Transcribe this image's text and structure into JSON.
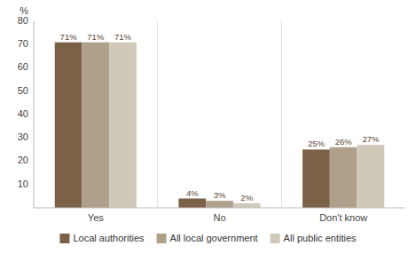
{
  "chart_data": {
    "type": "bar",
    "categories": [
      "Yes",
      "No",
      "Don't know"
    ],
    "series": [
      {
        "name": "Local authorities",
        "color": "#7B6147",
        "values": [
          71,
          4,
          25
        ],
        "value_labels": [
          "71%",
          "4%",
          "25%"
        ]
      },
      {
        "name": "All local government",
        "color": "#AFA08C",
        "values": [
          71,
          3,
          26
        ],
        "value_labels": [
          "71%",
          "3%",
          "26%"
        ]
      },
      {
        "name": "All public entities",
        "color": "#D0C9BA",
        "values": [
          71,
          2,
          27
        ],
        "value_labels": [
          "71%",
          "2%",
          "27%"
        ]
      }
    ],
    "y_label": "%",
    "ylim": [
      0,
      80
    ],
    "yticks": [
      10,
      20,
      30,
      40,
      50,
      60,
      70,
      80
    ],
    "grid": false,
    "legend": "bottom",
    "data_labels": true
  }
}
